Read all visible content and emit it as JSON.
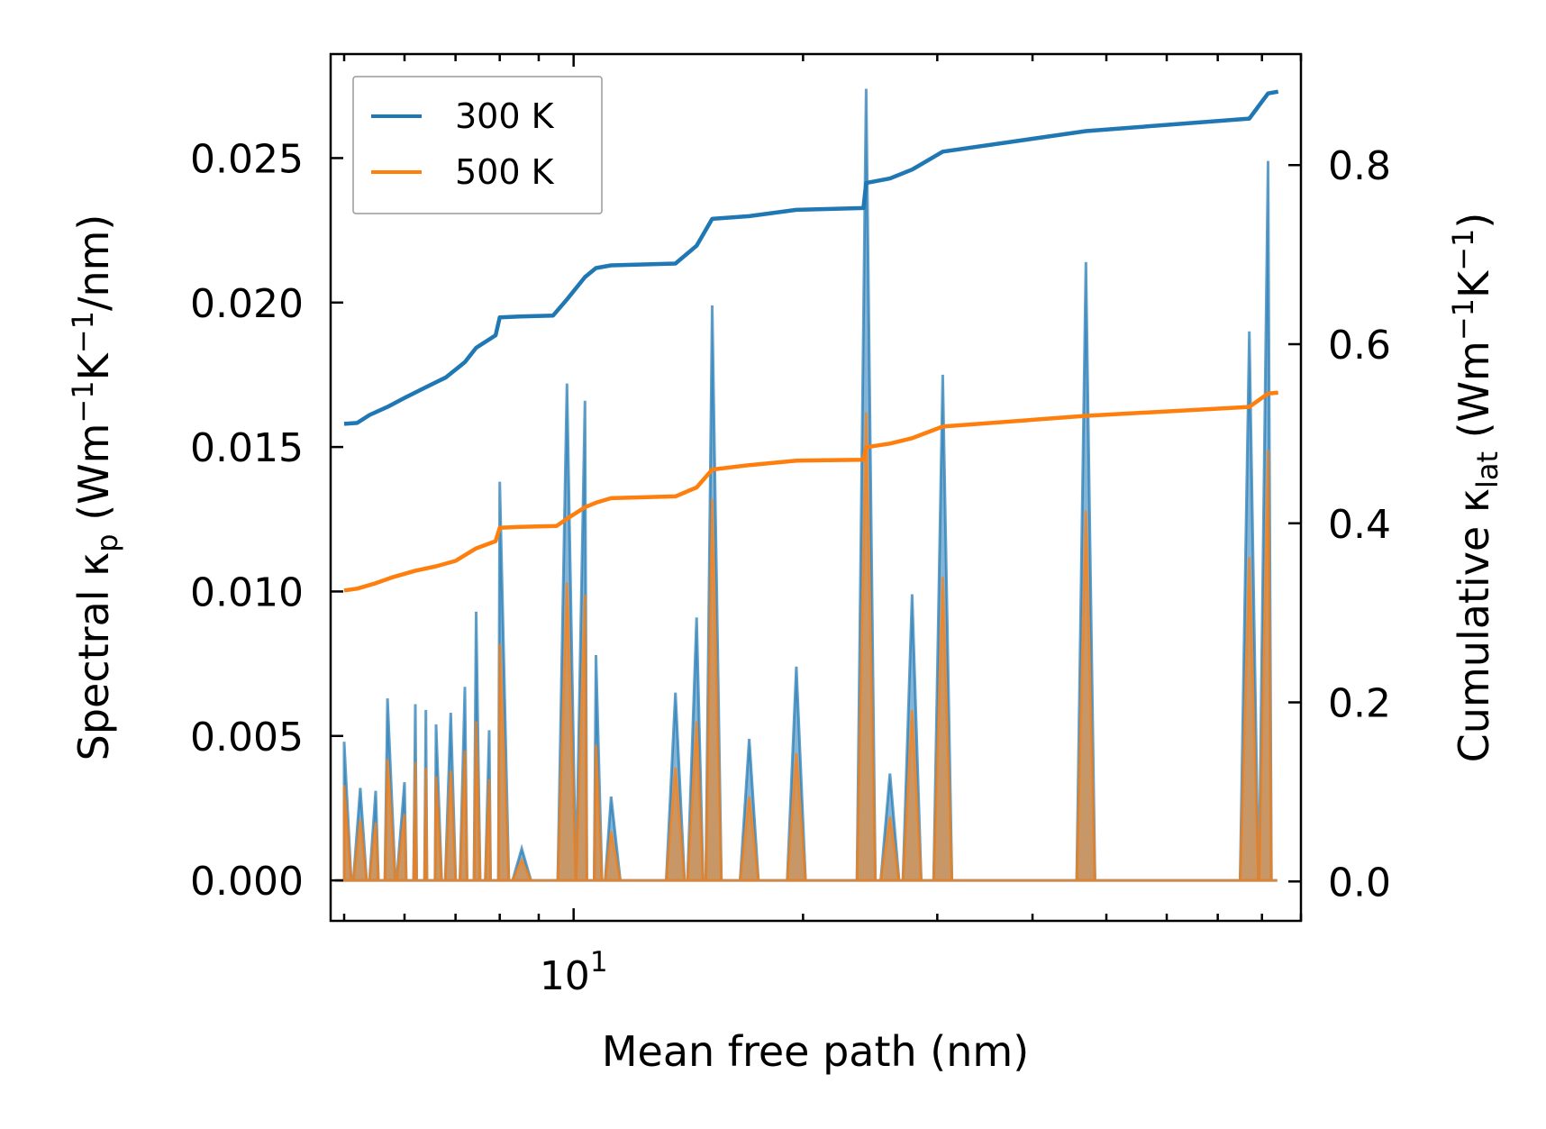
{
  "chart_data": {
    "type": "line",
    "xscale": "log",
    "xlim": [
      4.8,
      90
    ],
    "xlabel": "Mean free path (nm)",
    "x_major_ticks": [
      {
        "value": 10,
        "base": "10",
        "exp": "1"
      }
    ],
    "left_axis": {
      "label_parts": [
        "Spectral κ",
        "p",
        " (Wm",
        "−1",
        "K",
        "−1",
        "/nm)"
      ],
      "ylim": [
        -0.0014,
        0.0286
      ],
      "ticks": [
        {
          "value": 0.0,
          "label": "0.000"
        },
        {
          "value": 0.005,
          "label": "0.005"
        },
        {
          "value": 0.01,
          "label": "0.010"
        },
        {
          "value": 0.015,
          "label": "0.015"
        },
        {
          "value": 0.02,
          "label": "0.020"
        },
        {
          "value": 0.025,
          "label": "0.025"
        }
      ]
    },
    "right_axis": {
      "label_parts": [
        "Cumulative κ",
        "lat",
        " (Wm",
        "−1",
        "K",
        "−1",
        ")"
      ],
      "ylim": [
        -0.044,
        0.924
      ],
      "ticks": [
        {
          "value": 0.0,
          "label": "0.0"
        },
        {
          "value": 0.2,
          "label": "0.2"
        },
        {
          "value": 0.4,
          "label": "0.4"
        },
        {
          "value": 0.6,
          "label": "0.6"
        },
        {
          "value": 0.8,
          "label": "0.8"
        }
      ]
    },
    "legend": {
      "position": "top-left",
      "entries": [
        {
          "label": "300 K",
          "color": "#1f77b4"
        },
        {
          "label": "500 K",
          "color": "#ff7f0e"
        }
      ]
    },
    "spectral_series": [
      {
        "name": "300 K",
        "color": "#1f77b4",
        "peaks": [
          [
            5.0,
            0.0048
          ],
          [
            5.25,
            0.0032
          ],
          [
            5.5,
            0.0031
          ],
          [
            5.7,
            0.0063
          ],
          [
            6.0,
            0.0034
          ],
          [
            6.2,
            0.0061
          ],
          [
            6.4,
            0.0059
          ],
          [
            6.6,
            0.0054
          ],
          [
            6.9,
            0.0058
          ],
          [
            7.2,
            0.0067
          ],
          [
            7.45,
            0.0093
          ],
          [
            7.75,
            0.0052
          ],
          [
            8.0,
            0.0138
          ],
          [
            8.55,
            0.0011
          ],
          [
            9.8,
            0.0172
          ],
          [
            10.35,
            0.0166
          ],
          [
            10.7,
            0.0078
          ],
          [
            11.2,
            0.0029
          ],
          [
            13.6,
            0.0065
          ],
          [
            14.5,
            0.0091
          ],
          [
            15.2,
            0.0199
          ],
          [
            17.0,
            0.0049
          ],
          [
            19.6,
            0.0074
          ],
          [
            24.2,
            0.0274
          ],
          [
            26.0,
            0.0037
          ],
          [
            27.8,
            0.0099
          ],
          [
            30.5,
            0.0175
          ],
          [
            47.0,
            0.0214
          ],
          [
            77.0,
            0.019
          ],
          [
            81.5,
            0.0249
          ]
        ]
      },
      {
        "name": "500 K",
        "color": "#ff7f0e",
        "peaks": [
          [
            5.0,
            0.0033
          ],
          [
            5.25,
            0.0021
          ],
          [
            5.5,
            0.002
          ],
          [
            5.7,
            0.0042
          ],
          [
            6.0,
            0.0023
          ],
          [
            6.2,
            0.0041
          ],
          [
            6.4,
            0.0039
          ],
          [
            6.6,
            0.0036
          ],
          [
            6.9,
            0.0038
          ],
          [
            7.2,
            0.0045
          ],
          [
            7.45,
            0.0055
          ],
          [
            7.75,
            0.0035
          ],
          [
            8.0,
            0.0082
          ],
          [
            8.55,
            0.0007
          ],
          [
            9.8,
            0.0103
          ],
          [
            10.35,
            0.0099
          ],
          [
            10.7,
            0.0047
          ],
          [
            11.2,
            0.0017
          ],
          [
            13.6,
            0.0039
          ],
          [
            14.5,
            0.0055
          ],
          [
            15.2,
            0.0132
          ],
          [
            17.0,
            0.0029
          ],
          [
            19.6,
            0.0044
          ],
          [
            24.2,
            0.0162
          ],
          [
            26.0,
            0.0022
          ],
          [
            27.8,
            0.0059
          ],
          [
            30.5,
            0.0105
          ],
          [
            47.0,
            0.0128
          ],
          [
            77.0,
            0.0112
          ],
          [
            81.5,
            0.0149
          ]
        ]
      }
    ],
    "cumulative_series": [
      {
        "name": "300 K",
        "color": "#1f77b4",
        "points": [
          [
            5.0,
            0.511
          ],
          [
            5.2,
            0.512
          ],
          [
            5.4,
            0.521
          ],
          [
            5.7,
            0.53
          ],
          [
            6.0,
            0.54
          ],
          [
            6.4,
            0.552
          ],
          [
            6.8,
            0.563
          ],
          [
            7.2,
            0.58
          ],
          [
            7.45,
            0.596
          ],
          [
            7.9,
            0.61
          ],
          [
            8.0,
            0.63
          ],
          [
            8.5,
            0.631
          ],
          [
            9.4,
            0.632
          ],
          [
            9.8,
            0.65
          ],
          [
            10.35,
            0.675
          ],
          [
            10.7,
            0.685
          ],
          [
            11.2,
            0.688
          ],
          [
            13.6,
            0.69
          ],
          [
            14.5,
            0.71
          ],
          [
            15.2,
            0.74
          ],
          [
            17.0,
            0.743
          ],
          [
            19.6,
            0.75
          ],
          [
            24.0,
            0.752
          ],
          [
            24.2,
            0.78
          ],
          [
            26.0,
            0.785
          ],
          [
            27.8,
            0.795
          ],
          [
            30.5,
            0.815
          ],
          [
            47.0,
            0.838
          ],
          [
            77.0,
            0.852
          ],
          [
            81.5,
            0.88
          ],
          [
            84.0,
            0.882
          ]
        ]
      },
      {
        "name": "500 K",
        "color": "#ff7f0e",
        "points": [
          [
            5.0,
            0.325
          ],
          [
            5.2,
            0.327
          ],
          [
            5.5,
            0.333
          ],
          [
            5.8,
            0.34
          ],
          [
            6.2,
            0.347
          ],
          [
            6.6,
            0.352
          ],
          [
            7.0,
            0.358
          ],
          [
            7.45,
            0.372
          ],
          [
            7.9,
            0.38
          ],
          [
            8.0,
            0.395
          ],
          [
            8.5,
            0.396
          ],
          [
            9.5,
            0.397
          ],
          [
            9.8,
            0.405
          ],
          [
            10.35,
            0.418
          ],
          [
            10.7,
            0.423
          ],
          [
            11.2,
            0.428
          ],
          [
            13.6,
            0.43
          ],
          [
            14.5,
            0.44
          ],
          [
            15.2,
            0.46
          ],
          [
            17.0,
            0.465
          ],
          [
            19.6,
            0.47
          ],
          [
            24.0,
            0.471
          ],
          [
            24.2,
            0.485
          ],
          [
            26.0,
            0.489
          ],
          [
            27.8,
            0.495
          ],
          [
            30.5,
            0.508
          ],
          [
            47.0,
            0.52
          ],
          [
            77.0,
            0.53
          ],
          [
            81.5,
            0.545
          ],
          [
            84.0,
            0.546
          ]
        ]
      }
    ]
  }
}
